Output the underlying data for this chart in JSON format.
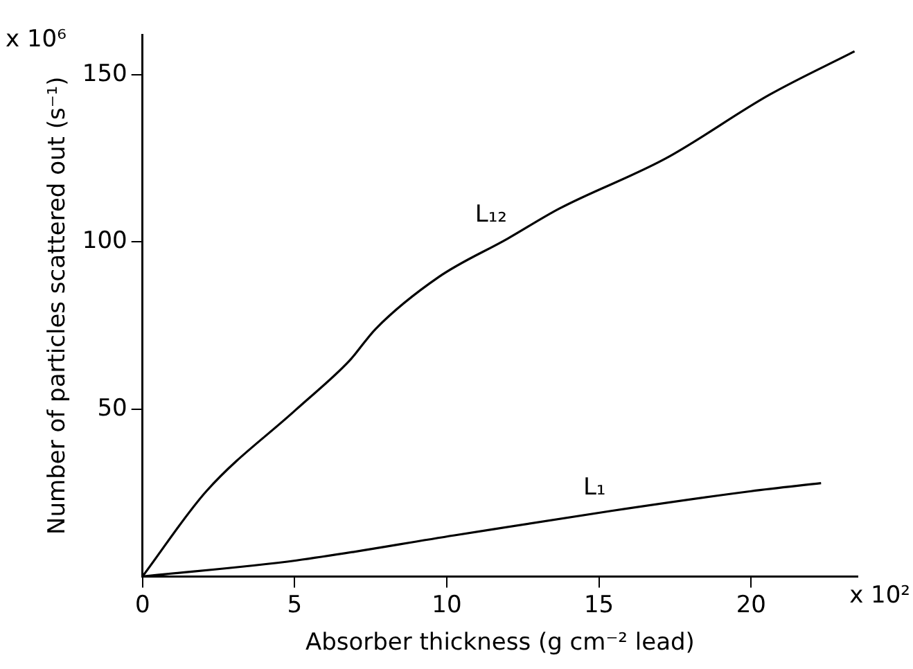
{
  "chart_data": {
    "type": "line",
    "xlabel": "Absorber thickness (g cm⁻² lead)",
    "ylabel": "Number of particles scattered out (s⁻¹)",
    "xlim": [
      0,
      23.5
    ],
    "ylim": [
      0,
      162
    ],
    "xticks": [
      0,
      5,
      10,
      15,
      20
    ],
    "yticks": [
      50,
      100,
      150
    ],
    "grid": false,
    "legend": false,
    "marker": "none",
    "line_style": "solid",
    "series": [
      {
        "color": "#000000",
        "x": [
          0,
          2.1,
          5.06,
          6.8,
          7.66,
          9.73,
          12,
          13.7,
          17.2,
          20.6,
          23.4
        ],
        "values": [
          0,
          25.5,
          50,
          64.5,
          74,
          89.5,
          101,
          110,
          125,
          144,
          157
        ]
      },
      {
        "color": "#000000",
        "x": [
          0,
          5.06,
          10.25,
          15.4,
          20,
          22.3
        ],
        "values": [
          0,
          4.8,
          12.3,
          19.6,
          25.5,
          27.9
        ]
      }
    ],
    "annotations": [
      "L₁₂",
      "L₁",
      "x 10⁶",
      "x 10²"
    ]
  }
}
